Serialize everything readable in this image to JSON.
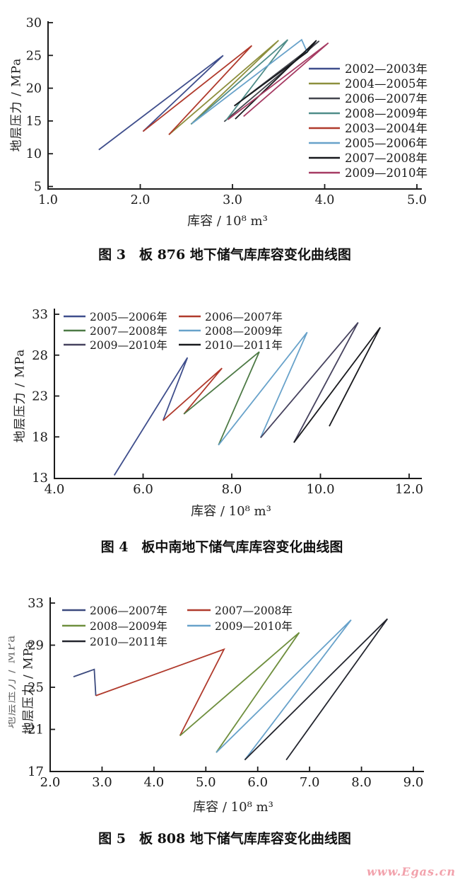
{
  "page": {
    "watermark": "www.Egas.cn"
  },
  "chart_data": [
    {
      "type": "line",
      "caption": "图 3　板 876 地下储气库库容变化曲线图",
      "xlabel": "库容 / 10⁸ m³",
      "ylabel": "地层压力 / MPa",
      "xlim": [
        1.0,
        5.0
      ],
      "ylim": [
        5,
        30
      ],
      "x_ticks": [
        "1.0",
        "2.0",
        "3.0",
        "4.0",
        "5.0"
      ],
      "y_ticks": [
        "5",
        "10",
        "15",
        "20",
        "25",
        "30"
      ],
      "grid": false,
      "legend_position": "right-inside",
      "legend_columns": 1,
      "series": [
        {
          "name": "2002—2003年",
          "color": "#3f4e8c",
          "points": [
            [
              1.55,
              10.6
            ],
            [
              2.9,
              25.0
            ],
            [
              2.03,
              13.4
            ]
          ]
        },
        {
          "name": "2004—2005年",
          "color": "#8d8f3d",
          "points": [
            [
              2.31,
              12.9
            ],
            [
              3.5,
              27.3
            ],
            [
              2.55,
              14.5
            ]
          ]
        },
        {
          "name": "2006—2007年",
          "color": "#44464e",
          "points": [
            [
              2.91,
              14.9
            ],
            [
              3.94,
              27.2
            ],
            [
              3.02,
              17.3
            ]
          ]
        },
        {
          "name": "2008—2009年",
          "color": "#4f8d89",
          "points": [
            [
              2.55,
              14.5
            ],
            [
              3.6,
              27.4
            ],
            [
              2.93,
              15.1
            ]
          ]
        },
        {
          "name": "2003—2004年",
          "color": "#b03a2c",
          "points": [
            [
              2.03,
              13.4
            ],
            [
              3.21,
              26.5
            ],
            [
              2.31,
              12.9
            ]
          ]
        },
        {
          "name": "2005—2006年",
          "color": "#68a2ca",
          "points": [
            [
              2.56,
              14.6
            ],
            [
              3.75,
              27.4
            ],
            [
              3.81,
              25.5
            ]
          ]
        },
        {
          "name": "2007—2008年",
          "color": "#17181c",
          "points": [
            [
              3.02,
              17.3
            ],
            [
              3.81,
              25.5
            ],
            [
              3.91,
              27.3
            ],
            [
              3.03,
              15.3
            ]
          ]
        },
        {
          "name": "2009—2010年",
          "color": "#a63b63",
          "points": [
            [
              2.95,
              15.2
            ],
            [
              4.04,
              26.9
            ],
            [
              3.12,
              15.7
            ]
          ]
        }
      ]
    },
    {
      "type": "line",
      "caption": "图 4　板中南地下储气库库容变化曲线图",
      "xlabel": "库容 / 10⁸ m³",
      "ylabel": "地层压力 / MPa",
      "xlim": [
        4.0,
        12.0
      ],
      "ylim": [
        13,
        33
      ],
      "x_ticks": [
        "4.0",
        "6.0",
        "8.0",
        "10.0",
        "12.0"
      ],
      "y_ticks": [
        "13",
        "18",
        "23",
        "28",
        "33"
      ],
      "grid": false,
      "legend_position": "top-left-inside",
      "legend_columns": 2,
      "series": [
        {
          "name": "2005—2006年",
          "color": "#3f4e8c",
          "points": [
            [
              5.35,
              13.3
            ],
            [
              7.0,
              27.7
            ],
            [
              6.45,
              20.0
            ]
          ]
        },
        {
          "name": "2006—2007年",
          "color": "#b03a2c",
          "points": [
            [
              6.45,
              20.0
            ],
            [
              7.78,
              26.4
            ],
            [
              6.92,
              20.8
            ]
          ]
        },
        {
          "name": "2007—2008年",
          "color": "#4d7a45",
          "points": [
            [
              6.92,
              20.8
            ],
            [
              8.62,
              28.4
            ],
            [
              7.7,
              17.0
            ]
          ]
        },
        {
          "name": "2008—2009年",
          "color": "#68a2ca",
          "points": [
            [
              7.7,
              17.0
            ],
            [
              9.7,
              30.8
            ],
            [
              8.65,
              17.9
            ]
          ]
        },
        {
          "name": "2009—2010年",
          "color": "#46425e",
          "points": [
            [
              8.65,
              17.9
            ],
            [
              10.85,
              32.0
            ],
            [
              9.4,
              17.3
            ]
          ]
        },
        {
          "name": "2010—2011年",
          "color": "#191a1e",
          "points": [
            [
              9.4,
              17.3
            ],
            [
              11.35,
              31.4
            ],
            [
              10.2,
              19.3
            ]
          ]
        }
      ]
    },
    {
      "type": "line",
      "caption": "图 5　板 808 地下储气库库容变化曲线图",
      "xlabel": "库容 / 10⁸ m³",
      "ylabel": "地层压力 / MPa",
      "ylabel_ghost": "地层压力 / MPa",
      "xlim": [
        2.0,
        9.0
      ],
      "ylim": [
        17,
        33
      ],
      "x_ticks": [
        "2.0",
        "3.0",
        "4.0",
        "5.0",
        "6.0",
        "7.0",
        "8.0",
        "9.0"
      ],
      "y_ticks": [
        "17",
        "21",
        "25",
        "29",
        "33"
      ],
      "grid": false,
      "legend_position": "top-left-inside",
      "legend_columns": 2,
      "series": [
        {
          "name": "2006—2007年",
          "color": "#3c4a7e",
          "points": [
            [
              2.45,
              26.0
            ],
            [
              2.85,
              26.7
            ],
            [
              2.88,
              24.2
            ]
          ]
        },
        {
          "name": "2007—2008年",
          "color": "#b03a2c",
          "points": [
            [
              2.88,
              24.2
            ],
            [
              5.35,
              28.6
            ],
            [
              4.5,
              20.4
            ]
          ]
        },
        {
          "name": "2008—2009年",
          "color": "#6f8f3e",
          "points": [
            [
              4.5,
              20.4
            ],
            [
              6.8,
              30.2
            ],
            [
              5.2,
              18.8
            ]
          ]
        },
        {
          "name": "2009—2010年",
          "color": "#68a2ca",
          "points": [
            [
              5.2,
              18.8
            ],
            [
              7.8,
              31.4
            ],
            [
              5.75,
              18.1
            ]
          ]
        },
        {
          "name": "2010—2011年",
          "color": "#23252e",
          "points": [
            [
              5.75,
              18.1
            ],
            [
              8.5,
              31.5
            ],
            [
              6.55,
              18.1
            ]
          ]
        }
      ]
    }
  ]
}
